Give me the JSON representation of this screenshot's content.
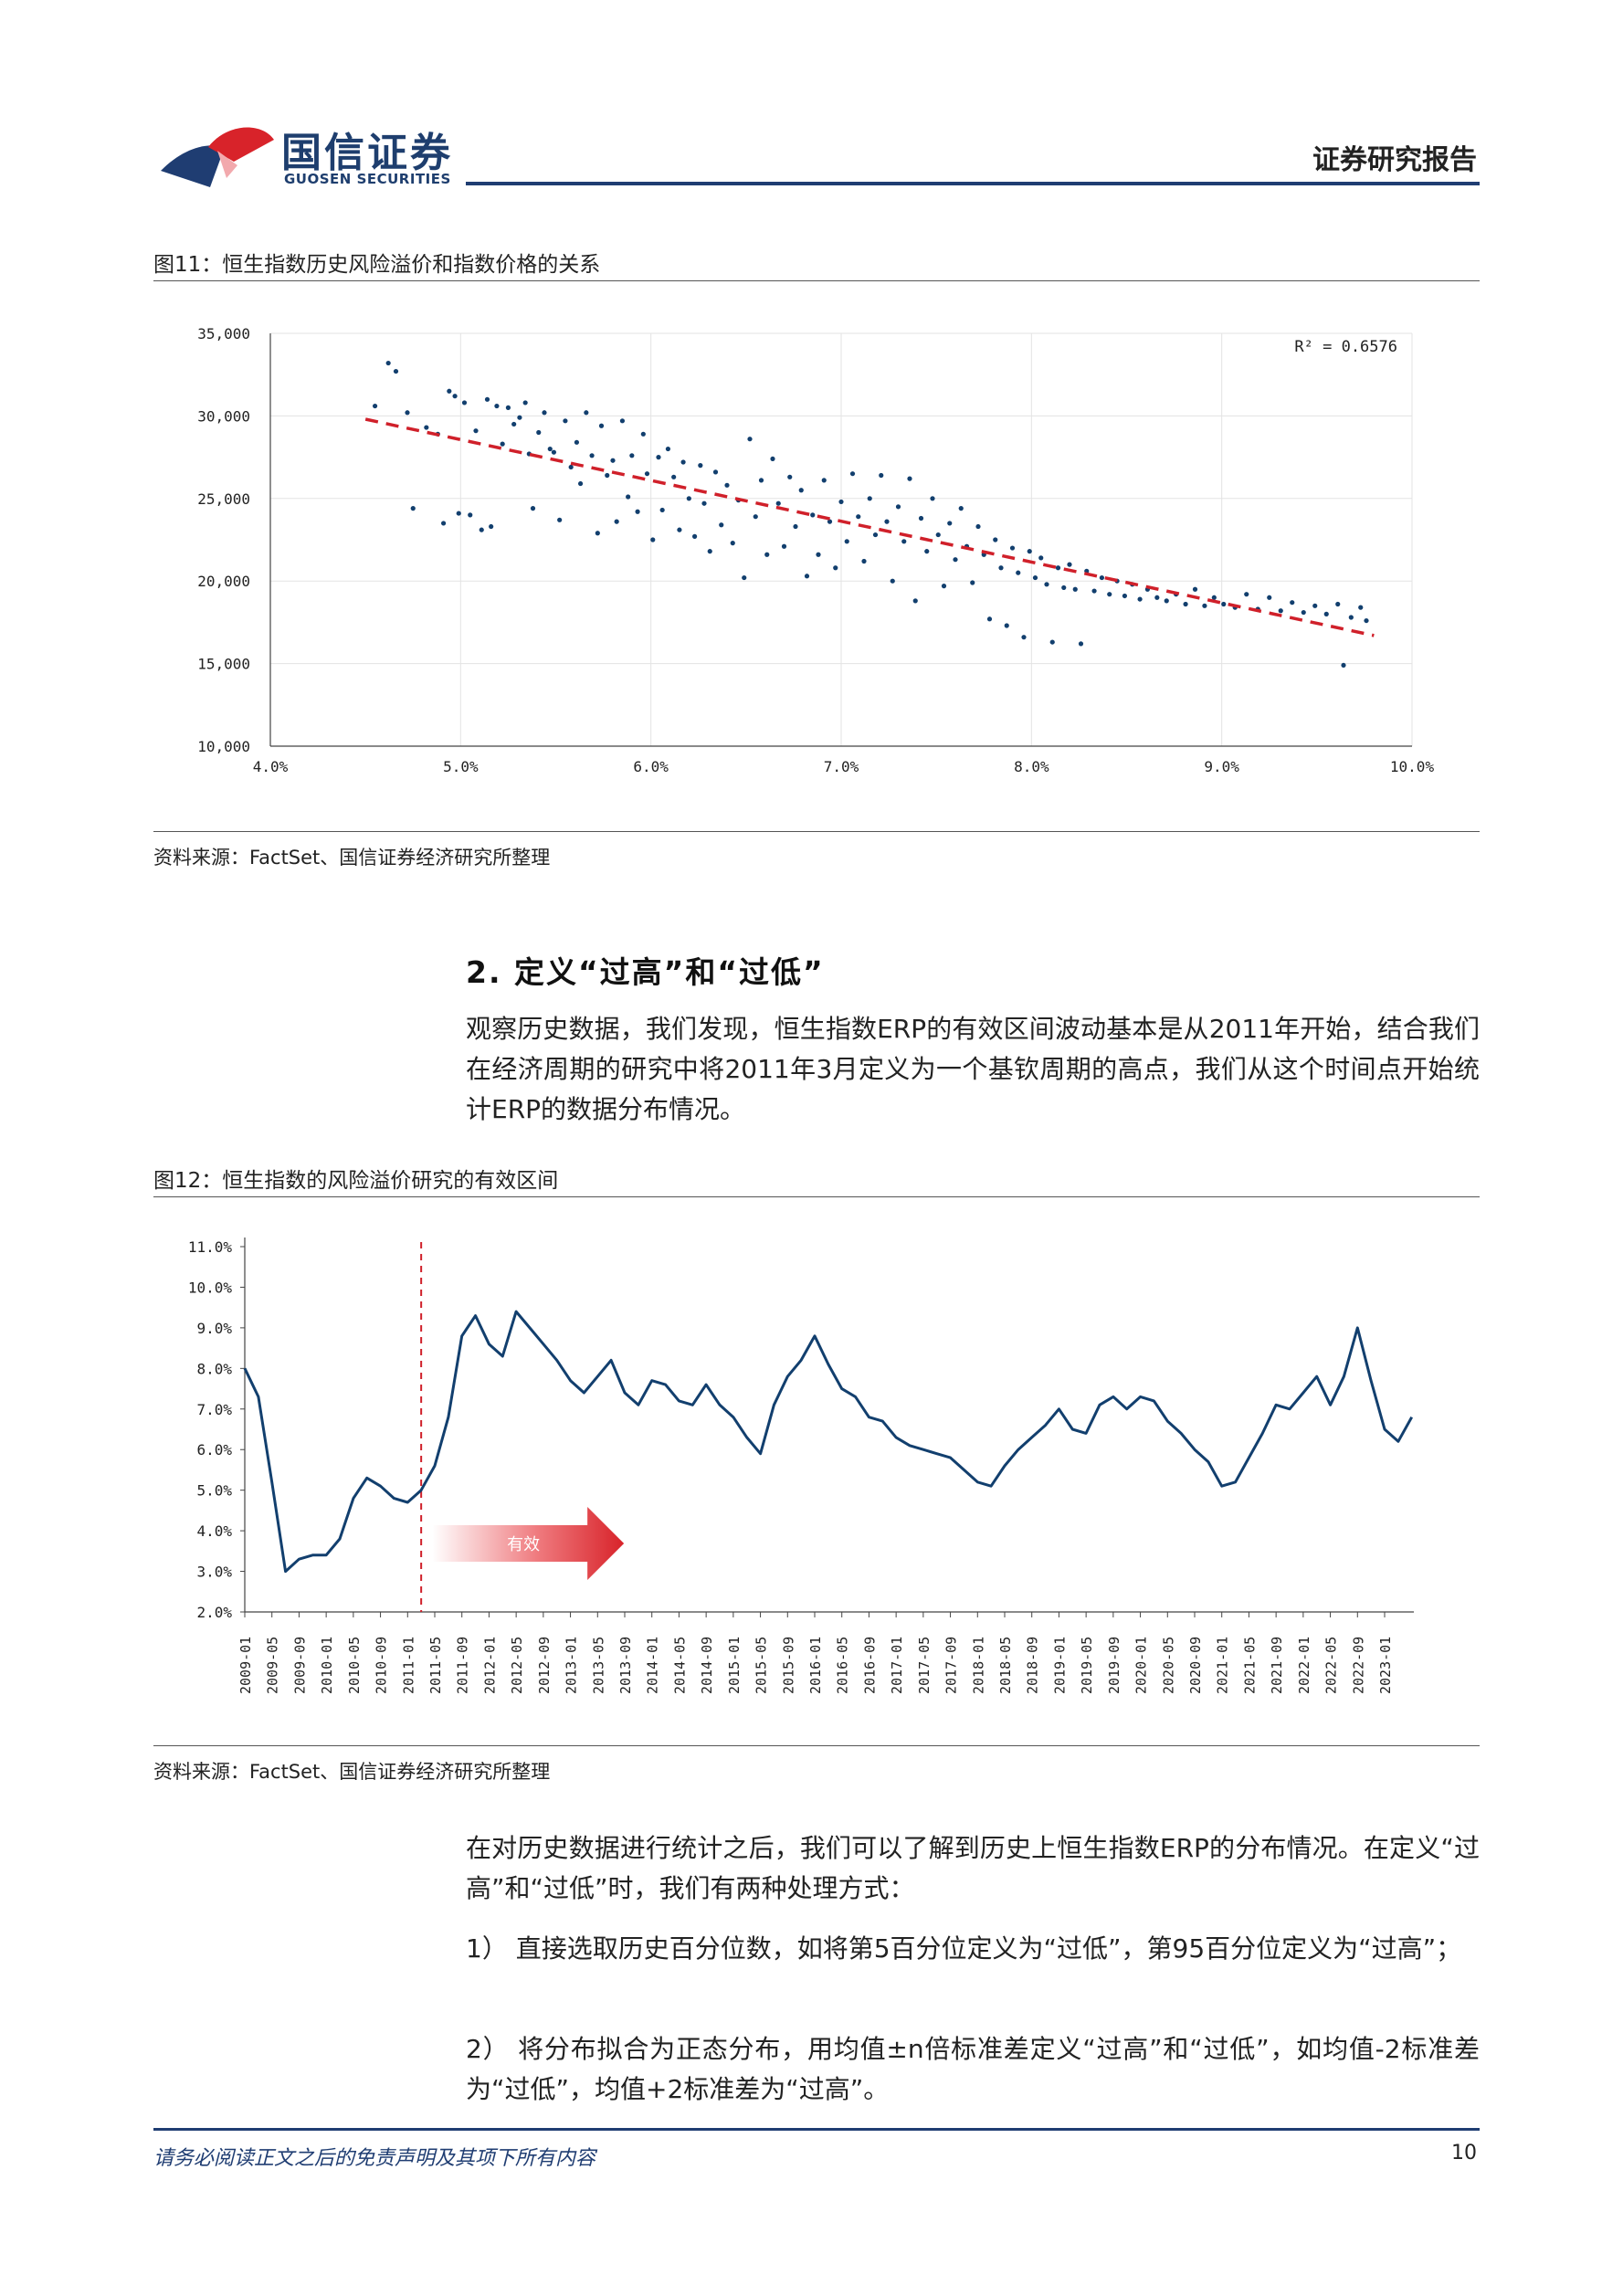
{
  "header": {
    "logo_cn": "国信证券",
    "logo_en": "GUOSEN SECURITIES",
    "report_type": "证券研究报告"
  },
  "figure11": {
    "title": "图11：恒生指数历史风险溢价和指数价格的关系",
    "source": "资料来源：FactSet、国信证券经济研究所整理",
    "r2_label": "R² = 0.6576"
  },
  "section": {
    "title": "2.  定义“过高”和“过低”",
    "para1": "观察历史数据，我们发现，恒生指数ERP的有效区间波动基本是从2011年开始，结合我们在经济周期的研究中将2011年3月定义为一个基钦周期的高点，我们从这个时间点开始统计ERP的数据分布情况。"
  },
  "figure12": {
    "title": "图12：恒生指数的风险溢价研究的有效区间",
    "source": "资料来源：FactSet、国信证券经济研究所整理",
    "arrow_label": "有效"
  },
  "body": {
    "para2": "在对历史数据进行统计之后，我们可以了解到历史上恒生指数ERP的分布情况。在定义“过高”和“过低”时，我们有两种处理方式：",
    "item1": "1） 直接选取历史百分位数，如将第5百分位定义为“过低”，第95百分位定义为“过高”；",
    "item2": "2） 将分布拟合为正态分布，用均值±n倍标准差定义“过高”和“过低”，如均值-2标准差为“过低”，均值+2标准差为“过高”。"
  },
  "footer": {
    "disclaimer": "请务必阅读正文之后的免责声明及其项下所有内容",
    "page_number": "10"
  },
  "colors": {
    "brand_navy": "#1f3d72",
    "brand_red": "#d8232a",
    "series_blue": "#123f6e",
    "trend_red": "#d0202a"
  },
  "chart_data": [
    {
      "type": "scatter",
      "xlim": [
        0.04,
        0.1
      ],
      "ylim": [
        10000,
        35000
      ],
      "x_ticks": [
        "4.0%",
        "5.0%",
        "6.0%",
        "7.0%",
        "8.0%",
        "9.0%",
        "10.0%"
      ],
      "y_ticks": [
        "10,000",
        "15,000",
        "20,000",
        "25,000",
        "30,000",
        "35,000"
      ],
      "trendline": {
        "x": [
          0.045,
          0.098
        ],
        "y": [
          29800,
          16700
        ]
      },
      "r_squared": 0.6576,
      "points": [
        [
          0.0455,
          30600
        ],
        [
          0.0462,
          33200
        ],
        [
          0.0466,
          32700
        ],
        [
          0.0472,
          30200
        ],
        [
          0.0475,
          24400
        ],
        [
          0.0482,
          29300
        ],
        [
          0.0488,
          28900
        ],
        [
          0.0491,
          23500
        ],
        [
          0.0494,
          31500
        ],
        [
          0.0497,
          31200
        ],
        [
          0.0499,
          24100
        ],
        [
          0.0502,
          30800
        ],
        [
          0.0505,
          24000
        ],
        [
          0.0508,
          29100
        ],
        [
          0.0511,
          23100
        ],
        [
          0.0514,
          31000
        ],
        [
          0.0516,
          23300
        ],
        [
          0.0519,
          30600
        ],
        [
          0.0522,
          28300
        ],
        [
          0.0525,
          30500
        ],
        [
          0.0528,
          29500
        ],
        [
          0.0531,
          29900
        ],
        [
          0.0534,
          30800
        ],
        [
          0.0536,
          27700
        ],
        [
          0.0538,
          24400
        ],
        [
          0.0541,
          29000
        ],
        [
          0.0544,
          30200
        ],
        [
          0.0547,
          28000
        ],
        [
          0.0549,
          27800
        ],
        [
          0.0552,
          23700
        ],
        [
          0.0555,
          29700
        ],
        [
          0.0558,
          26900
        ],
        [
          0.0561,
          28400
        ],
        [
          0.0563,
          25900
        ],
        [
          0.0566,
          30200
        ],
        [
          0.0569,
          27600
        ],
        [
          0.0572,
          22900
        ],
        [
          0.0574,
          29400
        ],
        [
          0.0577,
          26400
        ],
        [
          0.058,
          27300
        ],
        [
          0.0582,
          23600
        ],
        [
          0.0585,
          29700
        ],
        [
          0.0588,
          25100
        ],
        [
          0.059,
          27600
        ],
        [
          0.0593,
          24200
        ],
        [
          0.0596,
          28900
        ],
        [
          0.0598,
          26500
        ],
        [
          0.0601,
          22500
        ],
        [
          0.0604,
          27500
        ],
        [
          0.0606,
          24300
        ],
        [
          0.0609,
          28000
        ],
        [
          0.0612,
          26300
        ],
        [
          0.0615,
          23100
        ],
        [
          0.0617,
          27200
        ],
        [
          0.062,
          25000
        ],
        [
          0.0623,
          22700
        ],
        [
          0.0626,
          27000
        ],
        [
          0.0628,
          24700
        ],
        [
          0.0631,
          21800
        ],
        [
          0.0634,
          26600
        ],
        [
          0.0637,
          23400
        ],
        [
          0.064,
          25800
        ],
        [
          0.0643,
          22300
        ],
        [
          0.0646,
          24900
        ],
        [
          0.0649,
          20200
        ],
        [
          0.0652,
          28600
        ],
        [
          0.0655,
          23900
        ],
        [
          0.0658,
          26100
        ],
        [
          0.0661,
          21600
        ],
        [
          0.0664,
          27400
        ],
        [
          0.0667,
          24700
        ],
        [
          0.067,
          22100
        ],
        [
          0.0673,
          26300
        ],
        [
          0.0676,
          23300
        ],
        [
          0.0679,
          25500
        ],
        [
          0.0682,
          20300
        ],
        [
          0.0685,
          24000
        ],
        [
          0.0688,
          21600
        ],
        [
          0.0691,
          26100
        ],
        [
          0.0694,
          23600
        ],
        [
          0.0697,
          20800
        ],
        [
          0.07,
          24800
        ],
        [
          0.0703,
          22400
        ],
        [
          0.0706,
          26500
        ],
        [
          0.0709,
          23900
        ],
        [
          0.0712,
          21200
        ],
        [
          0.0715,
          25000
        ],
        [
          0.0718,
          22800
        ],
        [
          0.0721,
          26400
        ],
        [
          0.0724,
          23600
        ],
        [
          0.0727,
          20000
        ],
        [
          0.073,
          24500
        ],
        [
          0.0733,
          22400
        ],
        [
          0.0736,
          26200
        ],
        [
          0.0739,
          18800
        ],
        [
          0.0742,
          23800
        ],
        [
          0.0745,
          21800
        ],
        [
          0.0748,
          25000
        ],
        [
          0.0751,
          22800
        ],
        [
          0.0754,
          19700
        ],
        [
          0.0757,
          23500
        ],
        [
          0.076,
          21300
        ],
        [
          0.0763,
          24400
        ],
        [
          0.0766,
          22100
        ],
        [
          0.0769,
          19900
        ],
        [
          0.0772,
          23300
        ],
        [
          0.0775,
          21600
        ],
        [
          0.0778,
          17700
        ],
        [
          0.0781,
          22500
        ],
        [
          0.0784,
          20800
        ],
        [
          0.0787,
          17300
        ],
        [
          0.079,
          22000
        ],
        [
          0.0793,
          20500
        ],
        [
          0.0796,
          16600
        ],
        [
          0.0799,
          21800
        ],
        [
          0.0802,
          20200
        ],
        [
          0.0805,
          21400
        ],
        [
          0.0808,
          19800
        ],
        [
          0.0811,
          16300
        ],
        [
          0.0814,
          20800
        ],
        [
          0.0817,
          19600
        ],
        [
          0.082,
          21000
        ],
        [
          0.0823,
          19500
        ],
        [
          0.0826,
          16200
        ],
        [
          0.0829,
          20600
        ],
        [
          0.0833,
          19400
        ],
        [
          0.0837,
          20200
        ],
        [
          0.0841,
          19200
        ],
        [
          0.0845,
          20000
        ],
        [
          0.0849,
          19100
        ],
        [
          0.0853,
          19800
        ],
        [
          0.0857,
          18900
        ],
        [
          0.0861,
          19500
        ],
        [
          0.0866,
          19000
        ],
        [
          0.0871,
          18800
        ],
        [
          0.0876,
          19200
        ],
        [
          0.0881,
          18600
        ],
        [
          0.0886,
          19500
        ],
        [
          0.0891,
          18500
        ],
        [
          0.0896,
          19000
        ],
        [
          0.0901,
          18600
        ],
        [
          0.0907,
          18400
        ],
        [
          0.0913,
          19200
        ],
        [
          0.0919,
          18300
        ],
        [
          0.0925,
          19000
        ],
        [
          0.0931,
          18200
        ],
        [
          0.0937,
          18700
        ],
        [
          0.0943,
          18100
        ],
        [
          0.0949,
          18500
        ],
        [
          0.0955,
          18000
        ],
        [
          0.0961,
          18600
        ],
        [
          0.0964,
          14900
        ],
        [
          0.0968,
          17800
        ],
        [
          0.0973,
          18400
        ],
        [
          0.0976,
          17600
        ]
      ]
    },
    {
      "type": "line",
      "ylim": [
        0.02,
        0.11
      ],
      "y_ticks": [
        "2.0%",
        "3.0%",
        "4.0%",
        "5.0%",
        "6.0%",
        "7.0%",
        "8.0%",
        "9.0%",
        "10.0%",
        "11.0%"
      ],
      "x_ticks": [
        "2009-01",
        "2009-05",
        "2009-09",
        "2010-01",
        "2010-05",
        "2010-09",
        "2011-01",
        "2011-05",
        "2011-09",
        "2012-01",
        "2012-05",
        "2012-09",
        "2013-01",
        "2013-05",
        "2013-09",
        "2014-01",
        "2014-05",
        "2014-09",
        "2015-01",
        "2015-05",
        "2015-09",
        "2016-01",
        "2016-05",
        "2016-09",
        "2017-01",
        "2017-05",
        "2017-09",
        "2018-01",
        "2018-05",
        "2018-09",
        "2019-01",
        "2019-05",
        "2019-09",
        "2020-01",
        "2020-05",
        "2020-09",
        "2021-01",
        "2021-05",
        "2021-09",
        "2022-01",
        "2022-05",
        "2022-09",
        "2023-01"
      ],
      "marker": {
        "x": "2011-03"
      },
      "series": [
        {
          "name": "",
          "x": [
            "2009-01",
            "2009-03",
            "2009-05",
            "2009-07",
            "2009-09",
            "2009-11",
            "2010-01",
            "2010-03",
            "2010-05",
            "2010-07",
            "2010-09",
            "2010-11",
            "2011-01",
            "2011-03",
            "2011-05",
            "2011-07",
            "2011-09",
            "2011-11",
            "2012-01",
            "2012-03",
            "2012-05",
            "2012-07",
            "2012-09",
            "2012-11",
            "2013-01",
            "2013-03",
            "2013-05",
            "2013-07",
            "2013-09",
            "2013-11",
            "2014-01",
            "2014-03",
            "2014-05",
            "2014-07",
            "2014-09",
            "2014-11",
            "2015-01",
            "2015-03",
            "2015-05",
            "2015-07",
            "2015-09",
            "2015-11",
            "2016-01",
            "2016-03",
            "2016-05",
            "2016-07",
            "2016-09",
            "2016-11",
            "2017-01",
            "2017-03",
            "2017-05",
            "2017-07",
            "2017-09",
            "2017-11",
            "2018-01",
            "2018-03",
            "2018-05",
            "2018-07",
            "2018-09",
            "2018-11",
            "2019-01",
            "2019-03",
            "2019-05",
            "2019-07",
            "2019-09",
            "2019-11",
            "2020-01",
            "2020-03",
            "2020-05",
            "2020-07",
            "2020-09",
            "2020-11",
            "2021-01",
            "2021-03",
            "2021-05",
            "2021-07",
            "2021-09",
            "2021-11",
            "2022-01",
            "2022-03",
            "2022-05",
            "2022-07",
            "2022-09",
            "2022-11",
            "2023-01",
            "2023-03",
            "2023-05"
          ],
          "values": [
            0.08,
            0.073,
            0.052,
            0.03,
            0.033,
            0.034,
            0.034,
            0.038,
            0.048,
            0.053,
            0.051,
            0.048,
            0.047,
            0.05,
            0.056,
            0.068,
            0.088,
            0.093,
            0.086,
            0.083,
            0.094,
            0.09,
            0.086,
            0.082,
            0.077,
            0.074,
            0.078,
            0.082,
            0.074,
            0.071,
            0.077,
            0.076,
            0.072,
            0.071,
            0.076,
            0.071,
            0.068,
            0.063,
            0.059,
            0.071,
            0.078,
            0.082,
            0.088,
            0.081,
            0.075,
            0.073,
            0.068,
            0.067,
            0.063,
            0.061,
            0.06,
            0.059,
            0.058,
            0.055,
            0.052,
            0.051,
            0.056,
            0.06,
            0.063,
            0.066,
            0.07,
            0.065,
            0.064,
            0.071,
            0.073,
            0.07,
            0.073,
            0.072,
            0.067,
            0.064,
            0.06,
            0.057,
            0.051,
            0.052,
            0.058,
            0.064,
            0.071,
            0.07,
            0.074,
            0.078,
            0.071,
            0.078,
            0.09,
            0.077,
            0.065,
            0.062,
            0.068
          ]
        }
      ]
    }
  ]
}
